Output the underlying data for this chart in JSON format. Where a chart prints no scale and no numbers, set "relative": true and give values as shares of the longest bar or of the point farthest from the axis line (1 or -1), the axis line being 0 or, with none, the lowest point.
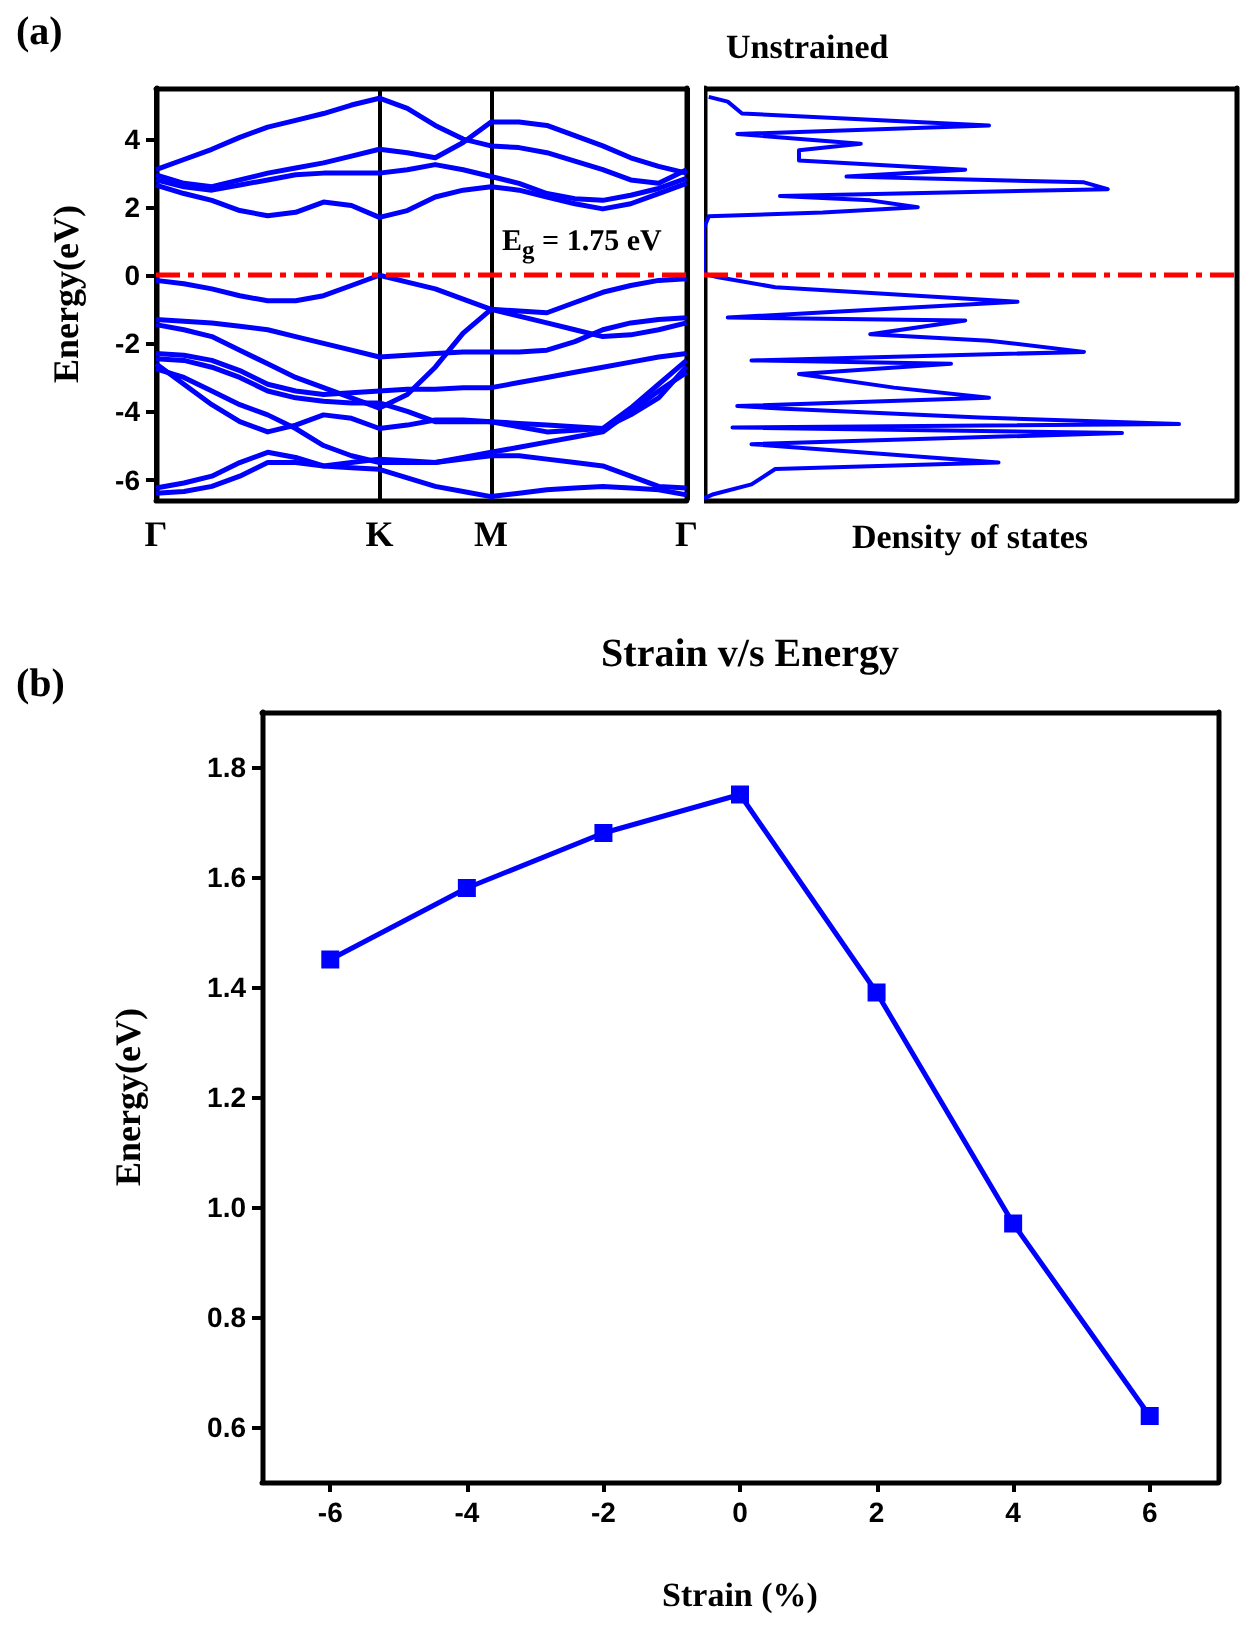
{
  "chart_data": [
    {
      "type": "line",
      "ylabel": "Energy(eV)",
      "annotations": [
        "(a)",
        "E$_{g}$ = 1.75 eV"
      ],
      "categories": [
        "Γ",
        null,
        null,
        null,
        null,
        null,
        null,
        null,
        "K",
        null,
        null,
        null,
        "M",
        null,
        null,
        null,
        null,
        null,
        null,
        "Γ"
      ],
      "ylim": [
        -6.6,
        5.5
      ],
      "yticks": [
        -6,
        -4,
        -2,
        0,
        2,
        4
      ],
      "grid": "x",
      "marker": "none",
      "line_style": "solid",
      "ref_lines": [
        {
          "axis": "y",
          "value": 0,
          "color": "#ff0000",
          "line_style": "dashed"
        }
      ],
      "series": [
        {
          "color": "#0000ff",
          "values": [
            3.1,
            3.4,
            3.7,
            4.05,
            4.35,
            4.55,
            4.75,
            5.0,
            5.2,
            4.9,
            4.4,
            4.0,
            3.8,
            3.75,
            3.6,
            3.35,
            3.1,
            2.8,
            2.7,
            3.1
          ]
        },
        {
          "color": "#0000ff",
          "values": [
            2.95,
            2.7,
            2.6,
            2.8,
            3.0,
            3.15,
            3.3,
            3.5,
            3.7,
            3.6,
            3.45,
            3.9,
            4.5,
            4.5,
            4.4,
            4.1,
            3.8,
            3.45,
            3.2,
            3.0
          ]
        },
        {
          "color": "#0000ff",
          "values": [
            2.8,
            2.6,
            2.5,
            2.65,
            2.8,
            2.95,
            3.0,
            3.0,
            3.0,
            3.1,
            3.25,
            3.1,
            2.9,
            2.7,
            2.4,
            2.25,
            2.2,
            2.35,
            2.55,
            2.85
          ]
        },
        {
          "color": "#0000ff",
          "values": [
            2.65,
            2.4,
            2.2,
            1.9,
            1.75,
            1.85,
            2.15,
            2.05,
            1.7,
            1.9,
            2.3,
            2.5,
            2.6,
            2.5,
            2.3,
            2.1,
            1.95,
            2.1,
            2.4,
            2.7
          ]
        },
        {
          "color": "#0000ff",
          "values": [
            -0.15,
            -0.25,
            -0.4,
            -0.6,
            -0.75,
            -0.75,
            -0.6,
            -0.3,
            0,
            -0.2,
            -0.4,
            -0.7,
            -1.0,
            -1.05,
            -1.1,
            -0.8,
            -0.5,
            -0.3,
            -0.15,
            -0.1
          ]
        },
        {
          "color": "#0000ff",
          "values": [
            -1.3,
            -1.35,
            -1.4,
            -1.5,
            -1.6,
            -1.8,
            -2.0,
            -2.2,
            -2.4,
            -2.35,
            -2.3,
            -2.25,
            -2.25,
            -2.25,
            -2.2,
            -1.95,
            -1.6,
            -1.4,
            -1.3,
            -1.25
          ]
        },
        {
          "color": "#0000ff",
          "values": [
            -1.45,
            -1.6,
            -1.8,
            -2.2,
            -2.6,
            -3.0,
            -3.3,
            -3.6,
            -3.9,
            -3.5,
            -2.7,
            -1.7,
            -1.0,
            -1.2,
            -1.4,
            -1.6,
            -1.8,
            -1.75,
            -1.6,
            -1.4
          ]
        },
        {
          "color": "#0000ff",
          "values": [
            -2.3,
            -2.35,
            -2.5,
            -2.8,
            -3.2,
            -3.4,
            -3.5,
            -3.45,
            -3.4,
            -3.35,
            -3.35,
            -3.3,
            -3.3,
            -3.15,
            -3.0,
            -2.85,
            -2.7,
            -2.55,
            -2.4,
            -2.3
          ]
        },
        {
          "color": "#0000ff",
          "values": [
            -2.45,
            -2.5,
            -2.7,
            -3.0,
            -3.4,
            -3.6,
            -3.7,
            -3.75,
            -3.75,
            -4.0,
            -4.3,
            -4.3,
            -4.3,
            -4.35,
            -4.4,
            -4.45,
            -4.5,
            -3.9,
            -3.2,
            -2.5
          ]
        },
        {
          "color": "#0000ff",
          "values": [
            -2.75,
            -3.0,
            -3.4,
            -3.8,
            -4.1,
            -4.5,
            -5.0,
            -5.3,
            -5.5,
            -5.5,
            -5.5,
            -5.35,
            -5.2,
            -5.05,
            -4.9,
            -4.75,
            -4.6,
            -4.0,
            -3.4,
            -2.85
          ]
        },
        {
          "color": "#0000ff",
          "values": [
            -2.6,
            -3.2,
            -3.8,
            -4.3,
            -4.6,
            -4.4,
            -4.1,
            -4.2,
            -4.5,
            -4.4,
            -4.25,
            -4.25,
            -4.3,
            -4.45,
            -4.6,
            -4.55,
            -4.5,
            -4.1,
            -3.6,
            -2.68
          ]
        },
        {
          "color": "#0000ff",
          "values": [
            -6.25,
            -6.1,
            -5.9,
            -5.5,
            -5.2,
            -5.35,
            -5.6,
            -5.5,
            -5.4,
            -5.45,
            -5.5,
            -5.4,
            -5.3,
            -5.3,
            -5.4,
            -5.5,
            -5.6,
            -5.9,
            -6.2,
            -6.25
          ]
        },
        {
          "color": "#0000ff",
          "values": [
            -6.4,
            -6.35,
            -6.2,
            -5.9,
            -5.5,
            -5.5,
            -5.6,
            -5.65,
            -5.7,
            -5.95,
            -6.2,
            -6.35,
            -6.5,
            -6.4,
            -6.3,
            -6.25,
            -6.2,
            -6.25,
            -6.3,
            -6.45
          ]
        }
      ]
    },
    {
      "type": "line",
      "title": "Unstrained",
      "xlabel": "Density of states",
      "orientation": "horizontal",
      "relative": true,
      "ylim": [
        -6.6,
        5.5
      ],
      "yticks": [
        -6,
        -4,
        -2,
        0,
        2,
        4
      ],
      "tick_labels": false,
      "marker": "none",
      "ref_lines": [
        {
          "axis": "y",
          "value": 0,
          "color": "#ff0000",
          "line_style": "dashed"
        }
      ],
      "x": [
        5.24,
        5.1,
        4.75,
        4.4,
        4.15,
        3.86,
        3.67,
        3.37,
        3.1,
        2.9,
        2.73,
        2.53,
        2.33,
        2.2,
        2.0,
        1.84,
        1.73,
        1.4,
        0.04,
        -0.06,
        -0.35,
        -0.78,
        -1.24,
        -1.33,
        -1.73,
        -1.92,
        -2.25,
        -2.5,
        -2.6,
        -2.9,
        -3.3,
        -3.6,
        -3.84,
        -3.92,
        -4.18,
        -4.37,
        -4.47,
        -4.63,
        -4.96,
        -5.5,
        -5.69,
        -6.14,
        -6.43,
        -6.55
      ],
      "series": [
        {
          "color": "#0000ff",
          "values": [
            0.01,
            0.05,
            0.08,
            0.6,
            0.07,
            0.33,
            0.2,
            0.2,
            0.55,
            0.3,
            0.8,
            0.85,
            0.16,
            0.35,
            0.45,
            0.25,
            0.01,
            0,
            0,
            0.03,
            0.15,
            0.66,
            0.05,
            0.55,
            0.35,
            0.6,
            0.8,
            0.1,
            0.52,
            0.2,
            0.4,
            0.6,
            0.07,
            0.17,
            0.58,
            1.0,
            0.06,
            0.88,
            0.1,
            0.62,
            0.15,
            0.1,
            0.02,
            0
          ]
        }
      ]
    },
    {
      "type": "line",
      "title": "Strain v/s Energy",
      "xlabel": "Strain (%)",
      "ylabel": "Energy(eV)",
      "annotations": [
        "(b)"
      ],
      "x": [
        -6,
        -4,
        -2,
        0,
        2,
        4,
        6
      ],
      "xlim": [
        -7,
        7
      ],
      "xticks": [
        -6,
        -4,
        -2,
        0,
        2,
        4,
        6
      ],
      "ylim": [
        0.5,
        1.9
      ],
      "yticks": [
        0.6,
        0.8,
        {
          "value": 1,
          "label": "1.0"
        },
        1.2,
        1.4,
        1.6,
        1.8
      ],
      "marker": "square",
      "series": [
        {
          "color": "#0000ff",
          "values": [
            1.45,
            1.58,
            1.68,
            1.75,
            1.39,
            0.97,
            0.62
          ]
        }
      ]
    }
  ]
}
